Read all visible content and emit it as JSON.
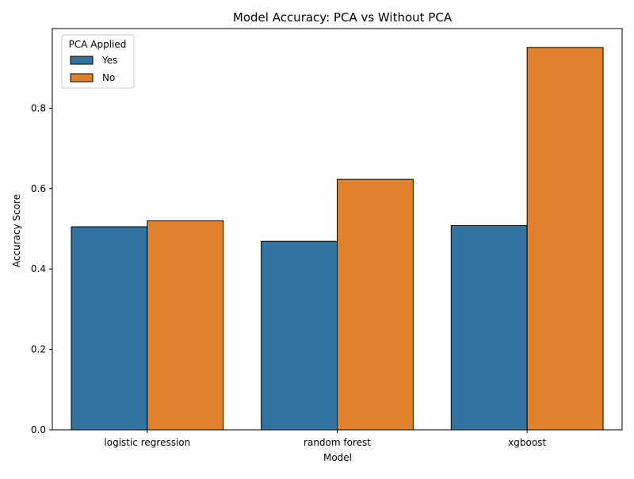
{
  "chart_data": {
    "type": "bar",
    "title": "Model Accuracy: PCA vs Without PCA",
    "xlabel": "Model",
    "ylabel": "Accuracy Score",
    "categories": [
      "logistic regression",
      "random forest",
      "xgboost"
    ],
    "series": [
      {
        "name": "Yes",
        "color": "#3274a1",
        "values": [
          0.505,
          0.469,
          0.508
        ]
      },
      {
        "name": "No",
        "color": "#e1812c",
        "values": [
          0.52,
          0.623,
          0.951
        ]
      }
    ],
    "ylim": [
      0,
      0.998
    ],
    "yticks": [
      0.0,
      0.2,
      0.4,
      0.6,
      0.8
    ],
    "ytick_labels": [
      "0.0",
      "0.2",
      "0.4",
      "0.6",
      "0.8"
    ],
    "legend": {
      "title": "PCA Applied",
      "placement": "top-left"
    },
    "grid": false,
    "bar_edge_color": "#000000"
  }
}
